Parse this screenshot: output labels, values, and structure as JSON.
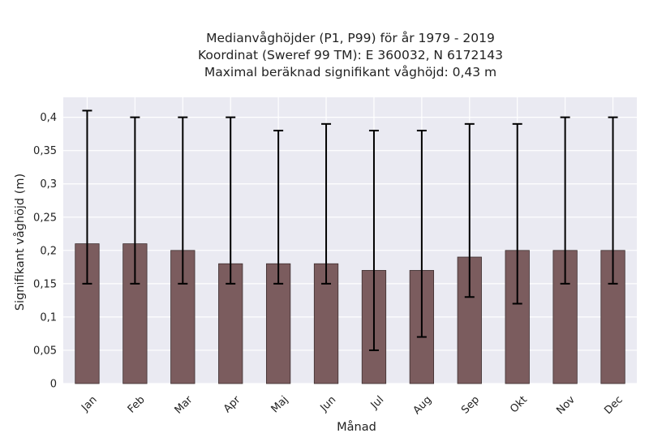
{
  "chart_data": {
    "type": "bar",
    "title_lines": [
      "Medianvåghöjder (P1, P99) för år 1979 - 2019",
      "Koordinat (Sweref 99 TM): E 360032, N 6172143",
      "Maximal beräknad signifikant våghöjd: 0,43 m"
    ],
    "xlabel": "Månad",
    "ylabel": "Signifikant våghöjd (m)",
    "categories": [
      "Jan",
      "Feb",
      "Mar",
      "Apr",
      "Maj",
      "Jun",
      "Jul",
      "Aug",
      "Sep",
      "Okt",
      "Nov",
      "Dec"
    ],
    "values": [
      0.21,
      0.21,
      0.2,
      0.18,
      0.18,
      0.18,
      0.17,
      0.17,
      0.19,
      0.2,
      0.2,
      0.2
    ],
    "error_low": [
      0.15,
      0.15,
      0.15,
      0.15,
      0.15,
      0.15,
      0.05,
      0.07,
      0.13,
      0.12,
      0.15,
      0.15
    ],
    "error_high": [
      0.41,
      0.4,
      0.4,
      0.4,
      0.38,
      0.39,
      0.38,
      0.38,
      0.39,
      0.39,
      0.4,
      0.4
    ],
    "yticks": [
      0,
      0.05,
      0.1,
      0.15,
      0.2,
      0.25,
      0.3,
      0.35,
      0.4
    ],
    "ytick_labels": [
      "0",
      "0,05",
      "0,1",
      "0,15",
      "0,2",
      "0,25",
      "0,3",
      "0,35",
      "0,4"
    ],
    "ylim": [
      0,
      0.43
    ],
    "grid": true,
    "legend": "none",
    "colors": {
      "bar": "#7b5c5e",
      "bar_edge": "#3d2e2f",
      "error": "#000000",
      "plot_bg": "#eaeaf2",
      "grid": "#ffffff"
    }
  }
}
